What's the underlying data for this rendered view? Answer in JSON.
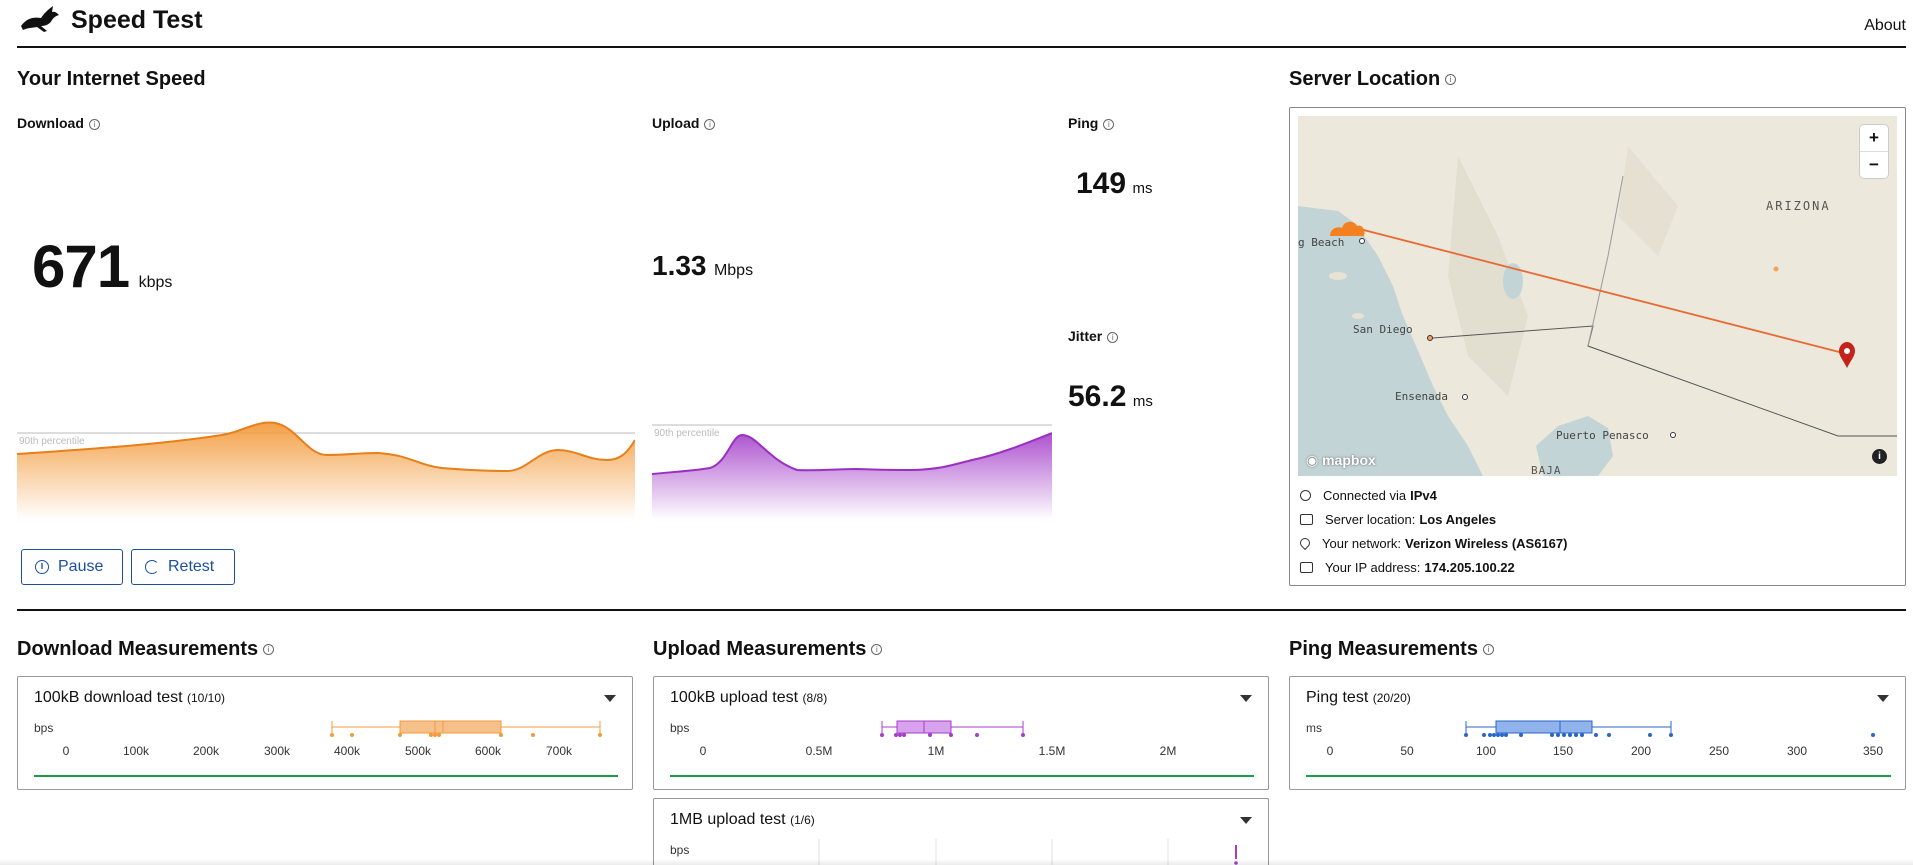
{
  "header": {
    "title": "Speed Test",
    "about": "About"
  },
  "speed": {
    "title": "Your Internet Speed",
    "download": {
      "label": "Download",
      "value": "671",
      "unit": "kbps",
      "percentile_label": "90th percentile"
    },
    "upload": {
      "label": "Upload",
      "value": "1.33",
      "unit": "Mbps",
      "percentile_label": "90th percentile"
    },
    "ping": {
      "label": "Ping",
      "value": "149",
      "unit": "ms"
    },
    "jitter": {
      "label": "Jitter",
      "value": "56.2",
      "unit": "ms"
    }
  },
  "buttons": {
    "pause": "Pause",
    "retest": "Retest"
  },
  "server": {
    "title": "Server Location",
    "map_labels": {
      "long_beach": "g Beach",
      "san_diego": "San Diego",
      "ensenada": "Ensenada",
      "puerto_penasco": "Puerto Penasco",
      "arizona": "ARIZONA",
      "baja": "BAJA",
      "mapbox": "mapbox"
    },
    "zoom_in": "+",
    "zoom_out": "−",
    "map_info": "i",
    "connected_label": "Connected via",
    "connected_value": "IPv4",
    "location_label": "Server location:",
    "location_value": "Los Angeles",
    "network_label": "Your network:",
    "network_value": "Verizon Wireless (AS6167)",
    "ip_label": "Your IP address:",
    "ip_value": "174.205.100.22"
  },
  "measurements": {
    "download": {
      "title": "Download Measurements",
      "card": {
        "name": "100kB download test",
        "count": "(10/10)",
        "unit": "bps",
        "ticks": [
          "0",
          "100k",
          "200k",
          "300k",
          "400k",
          "500k",
          "600k",
          "700k"
        ]
      }
    },
    "upload": {
      "title": "Upload Measurements",
      "card": {
        "name": "100kB upload test",
        "count": "(8/8)",
        "unit": "bps",
        "ticks": [
          "0",
          "0.5M",
          "1M",
          "1.5M",
          "2M"
        ]
      },
      "card2": {
        "name": "1MB upload test",
        "count": "(1/6)",
        "unit": "bps"
      }
    },
    "ping": {
      "title": "Ping Measurements",
      "card": {
        "name": "Ping test",
        "count": "(20/20)",
        "unit": "ms",
        "ticks": [
          "0",
          "50",
          "100",
          "150",
          "200",
          "250",
          "300",
          "350"
        ]
      }
    }
  },
  "colors": {
    "download": "#f39b3c",
    "upload": "#a43fc9",
    "ping": "#2a66c9",
    "green": "#1a9c48",
    "button": "#1c4fa0"
  }
}
